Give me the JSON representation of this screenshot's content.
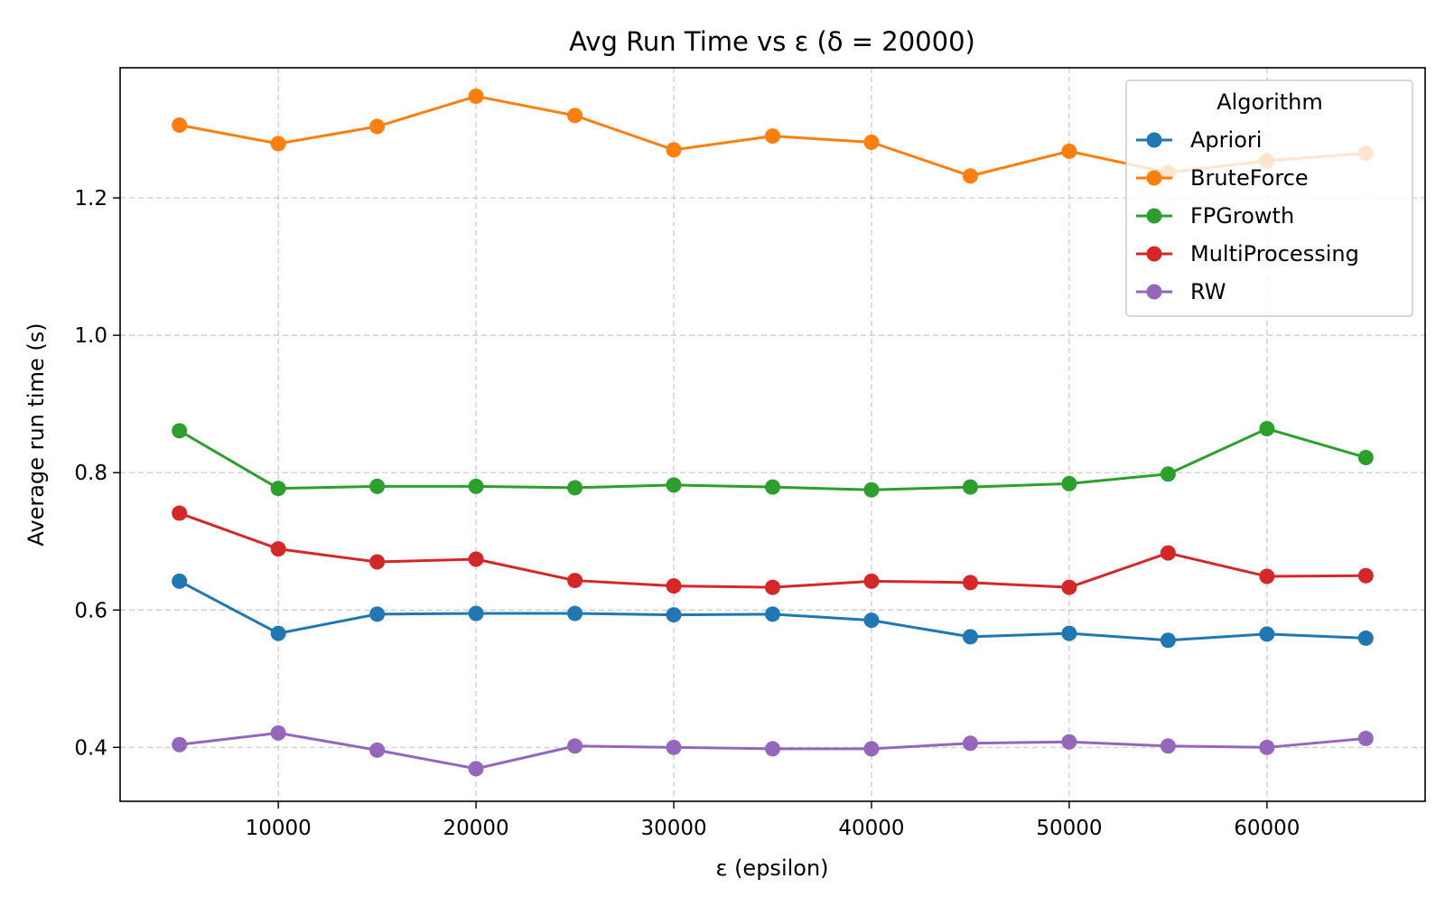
{
  "chart_data": {
    "type": "line",
    "title": "Avg Run Time vs ε (δ = 20000)",
    "xlabel": "ε (epsilon)",
    "ylabel": "Average run time (s)",
    "xlim": [
      2000,
      68000
    ],
    "ylim": [
      0.3215,
      1.3895
    ],
    "xticks": [
      10000,
      20000,
      30000,
      40000,
      50000,
      60000
    ],
    "xtick_labels": [
      "10000",
      "20000",
      "30000",
      "40000",
      "50000",
      "60000"
    ],
    "yticks": [
      0.4,
      0.6,
      0.8,
      1.0,
      1.2
    ],
    "ytick_labels": [
      "0.4",
      "0.6",
      "0.8",
      "1.0",
      "1.2"
    ],
    "grid": true,
    "legend": {
      "title": "Algorithm",
      "placement": "top-right"
    },
    "x": [
      5000,
      10000,
      15000,
      20000,
      25000,
      30000,
      35000,
      40000,
      45000,
      50000,
      55000,
      60000,
      65000
    ],
    "series": [
      {
        "name": "Apriori",
        "color": "#1f77b4",
        "values": [
          0.642,
          0.566,
          0.594,
          0.595,
          0.595,
          0.593,
          0.594,
          0.585,
          0.561,
          0.566,
          0.556,
          0.565,
          0.559
        ]
      },
      {
        "name": "BruteForce",
        "color": "#ff7f0e",
        "values": [
          1.306,
          1.279,
          1.304,
          1.348,
          1.32,
          1.27,
          1.29,
          1.281,
          1.232,
          1.268,
          1.237,
          1.254,
          1.265
        ]
      },
      {
        "name": "FPGrowth",
        "color": "#2ca02c",
        "values": [
          0.861,
          0.777,
          0.78,
          0.78,
          0.778,
          0.782,
          0.779,
          0.775,
          0.779,
          0.784,
          0.798,
          0.864,
          0.822
        ]
      },
      {
        "name": "MultiProcessing",
        "color": "#d62728",
        "values": [
          0.741,
          0.689,
          0.67,
          0.674,
          0.643,
          0.635,
          0.633,
          0.642,
          0.64,
          0.633,
          0.683,
          0.649,
          0.65
        ]
      },
      {
        "name": "RW",
        "color": "#9467bd",
        "values": [
          0.404,
          0.421,
          0.396,
          0.369,
          0.402,
          0.4,
          0.398,
          0.398,
          0.406,
          0.408,
          0.402,
          0.4,
          0.413
        ]
      }
    ]
  }
}
